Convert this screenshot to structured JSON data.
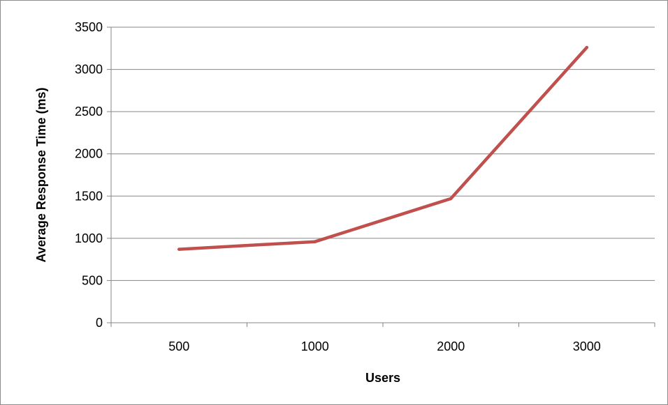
{
  "chart_data": {
    "type": "line",
    "categories": [
      "500",
      "1000",
      "2000",
      "3000"
    ],
    "series": [
      {
        "values": [
          870,
          960,
          1470,
          3260
        ],
        "color": "#c0504d"
      }
    ],
    "xlabel": "Users",
    "ylabel": "Average Response Time (ms)",
    "ylim": [
      0,
      3500
    ],
    "yticks": [
      "0",
      "500",
      "1000",
      "1500",
      "2000",
      "2500",
      "3000",
      "3500"
    ],
    "grid": true,
    "legend": "none",
    "gridline_color": "#868686"
  }
}
